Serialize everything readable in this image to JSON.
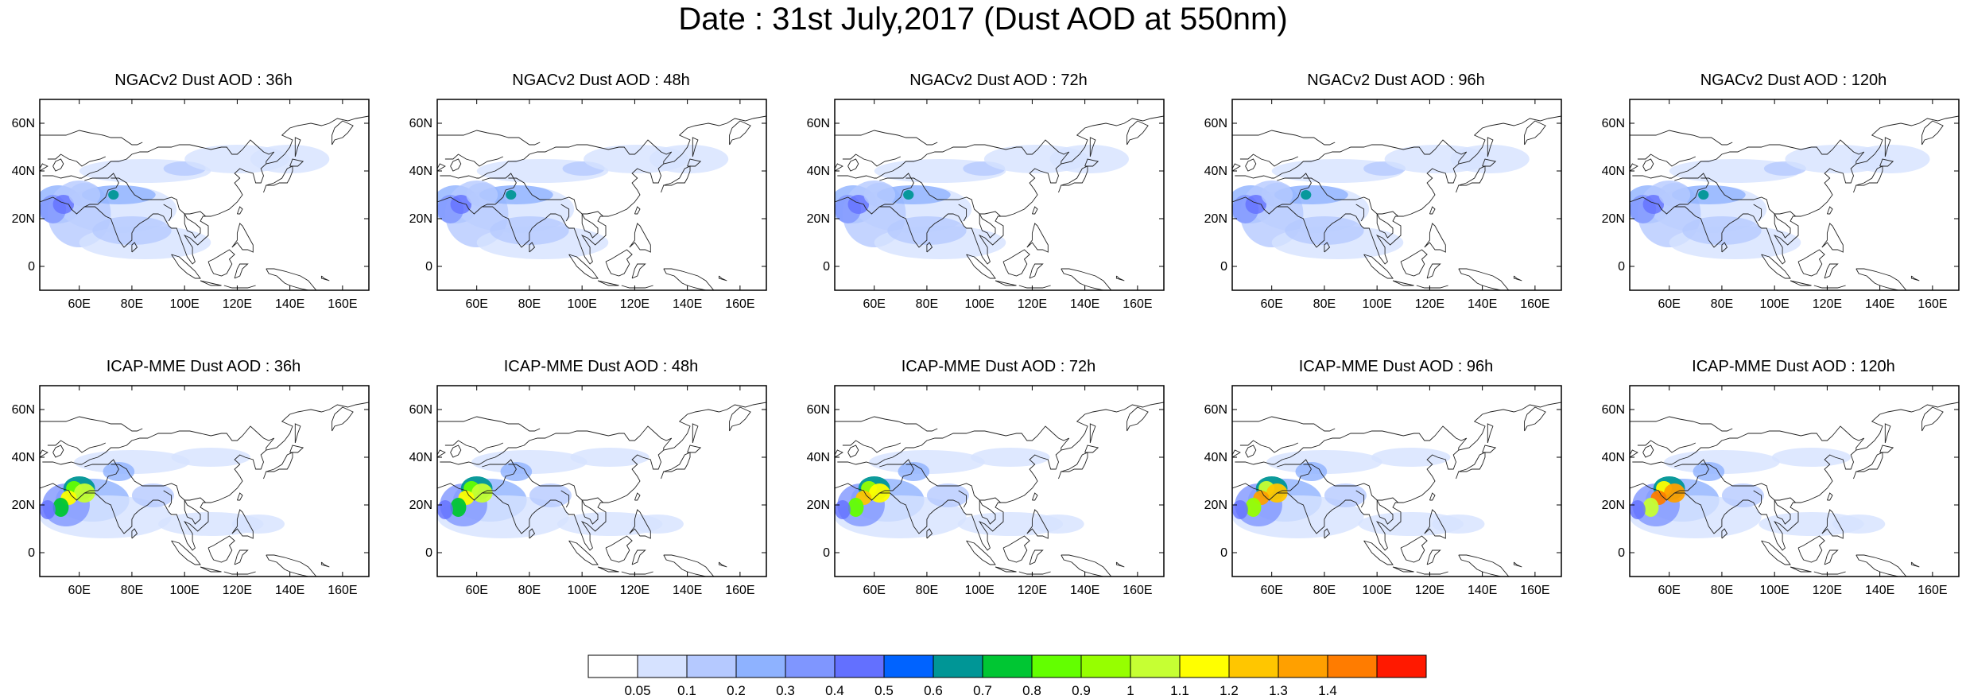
{
  "title": "Date : 31st July,2017 (Dust AOD at 550nm)",
  "panels": [
    {
      "title": "NGACv2 Dust AOD : 36h",
      "model": "ngac",
      "lead": 36
    },
    {
      "title": "NGACv2 Dust AOD : 48h",
      "model": "ngac",
      "lead": 48
    },
    {
      "title": "NGACv2 Dust AOD : 72h",
      "model": "ngac",
      "lead": 72
    },
    {
      "title": "NGACv2 Dust AOD : 96h",
      "model": "ngac",
      "lead": 96
    },
    {
      "title": "NGACv2 Dust AOD : 120h",
      "model": "ngac",
      "lead": 120
    },
    {
      "title": "ICAP-MME Dust AOD : 36h",
      "model": "icap",
      "lead": 36
    },
    {
      "title": "ICAP-MME Dust AOD : 48h",
      "model": "icap",
      "lead": 48
    },
    {
      "title": "ICAP-MME Dust AOD : 72h",
      "model": "icap",
      "lead": 72
    },
    {
      "title": "ICAP-MME Dust AOD : 96h",
      "model": "icap",
      "lead": 96
    },
    {
      "title": "ICAP-MME Dust AOD : 120h",
      "model": "icap",
      "lead": 120
    }
  ],
  "map_extent": {
    "lon": [
      45,
      170
    ],
    "lat": [
      -10,
      70
    ]
  },
  "lon_ticks": [
    "60E",
    "80E",
    "100E",
    "120E",
    "140E",
    "160E"
  ],
  "lat_ticks": [
    "0",
    "20N",
    "40N",
    "60N"
  ],
  "colorbar": {
    "labels": [
      "0.05",
      "0.1",
      "0.2",
      "0.3",
      "0.4",
      "0.5",
      "0.6",
      "0.7",
      "0.8",
      "0.9",
      "1",
      "1.1",
      "1.2",
      "1.3",
      "1.4"
    ],
    "colors": [
      "#ffffff",
      "#d6e2ff",
      "#b5c9ff",
      "#8eb2ff",
      "#7f96ff",
      "#6370ff",
      "#0063ff",
      "#009696",
      "#00c633",
      "#63ff00",
      "#96ff00",
      "#c6ff33",
      "#ffff00",
      "#ffc600",
      "#ffa000",
      "#ff7c00",
      "#ff1900"
    ]
  }
}
